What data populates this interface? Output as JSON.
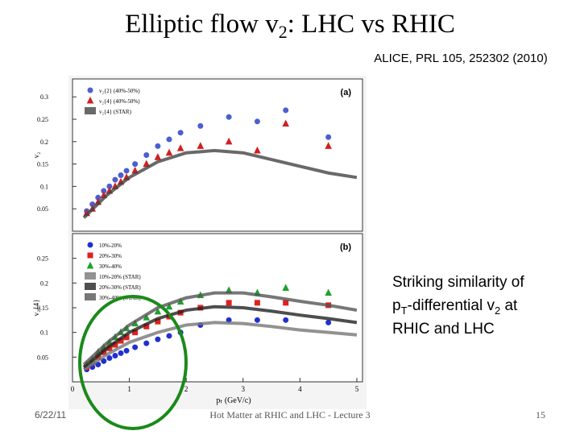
{
  "slide": {
    "title_parts": [
      "Elliptic flow v",
      "2",
      ": LHC vs RHIC"
    ],
    "citation": "ALICE, PRL 105, 252302 (2010)",
    "side_note": {
      "line1": "Striking similarity of",
      "line2_parts": [
        "p",
        "T",
        "-differential v",
        "2",
        " at"
      ],
      "line3": "RHIC and LHC"
    },
    "footer_date": "6/22/11",
    "footer_center": "Hot Matter at RHIC and LHC - Lecture 3",
    "page_number": "15"
  },
  "chart_data": [
    {
      "type": "scatter",
      "panel_tag": "(a)",
      "y_label": "v₂",
      "xlim": [
        0,
        5.1
      ],
      "ylim": [
        0,
        0.34
      ],
      "yticks": [
        0.05,
        0.1,
        0.15,
        0.2,
        0.25,
        0.3
      ],
      "series": [
        {
          "name": "v₂{2} (40%-50%)",
          "color": "#4a5fd0",
          "marker": "circle",
          "x": [
            0.25,
            0.35,
            0.45,
            0.55,
            0.65,
            0.75,
            0.85,
            0.95,
            1.1,
            1.3,
            1.5,
            1.7,
            1.9,
            2.25,
            2.75,
            3.25,
            3.75,
            4.5
          ],
          "values": [
            0.045,
            0.06,
            0.075,
            0.09,
            0.1,
            0.115,
            0.125,
            0.135,
            0.15,
            0.17,
            0.19,
            0.205,
            0.22,
            0.235,
            0.255,
            0.245,
            0.27,
            0.21
          ]
        },
        {
          "name": "v₂{4} (40%-50%)",
          "color": "#d02020",
          "marker": "triangle",
          "x": [
            0.25,
            0.35,
            0.45,
            0.55,
            0.65,
            0.75,
            0.85,
            0.95,
            1.1,
            1.3,
            1.5,
            1.7,
            1.9,
            2.25,
            2.75,
            3.25,
            3.75,
            4.5
          ],
          "values": [
            0.04,
            0.05,
            0.065,
            0.08,
            0.09,
            0.1,
            0.11,
            0.12,
            0.135,
            0.15,
            0.165,
            0.175,
            0.185,
            0.19,
            0.2,
            0.18,
            0.24,
            0.19
          ]
        },
        {
          "name": "v₂{4} (STAR)",
          "color": "#444444",
          "marker": "line",
          "x": [
            0.2,
            0.6,
            1,
            1.5,
            2,
            2.5,
            3,
            3.5,
            4,
            4.5,
            5
          ],
          "values": [
            0.03,
            0.08,
            0.12,
            0.155,
            0.175,
            0.18,
            0.175,
            0.16,
            0.145,
            0.13,
            0.12
          ]
        }
      ]
    },
    {
      "type": "scatter",
      "panel_tag": "(b)",
      "y_label": "v₂{4}",
      "x_label": "pₜ (GeV/c)",
      "xlim": [
        0,
        5.1
      ],
      "ylim": [
        0,
        0.3
      ],
      "yticks": [
        0.05,
        0.1,
        0.15,
        0.2,
        0.25
      ],
      "xticks": [
        0,
        1,
        2,
        3,
        4,
        5
      ],
      "series": [
        {
          "name": "10%-20%",
          "color": "#2030d0",
          "marker": "circle",
          "x": [
            0.25,
            0.35,
            0.45,
            0.55,
            0.65,
            0.75,
            0.85,
            0.95,
            1.1,
            1.3,
            1.5,
            1.7,
            1.9,
            2.25,
            2.75,
            3.25,
            3.75,
            4.5
          ],
          "values": [
            0.025,
            0.03,
            0.035,
            0.042,
            0.048,
            0.053,
            0.058,
            0.063,
            0.07,
            0.078,
            0.086,
            0.093,
            0.1,
            0.115,
            0.125,
            0.125,
            0.125,
            0.12
          ]
        },
        {
          "name": "20%-30%",
          "color": "#e02020",
          "marker": "square",
          "x": [
            0.25,
            0.35,
            0.45,
            0.55,
            0.65,
            0.75,
            0.85,
            0.95,
            1.1,
            1.3,
            1.5,
            1.7,
            1.9,
            2.25,
            2.75,
            3.25,
            3.75,
            4.5
          ],
          "values": [
            0.03,
            0.04,
            0.05,
            0.06,
            0.068,
            0.075,
            0.083,
            0.09,
            0.1,
            0.112,
            0.122,
            0.132,
            0.14,
            0.15,
            0.16,
            0.16,
            0.16,
            0.155
          ]
        },
        {
          "name": "30%-40%",
          "color": "#20a030",
          "marker": "triangle",
          "x": [
            0.25,
            0.35,
            0.45,
            0.55,
            0.65,
            0.75,
            0.85,
            0.95,
            1.1,
            1.3,
            1.5,
            1.7,
            1.9,
            2.25,
            2.75,
            3.25,
            3.75,
            4.5
          ],
          "values": [
            0.035,
            0.045,
            0.06,
            0.07,
            0.08,
            0.09,
            0.1,
            0.108,
            0.118,
            0.13,
            0.142,
            0.152,
            0.162,
            0.175,
            0.185,
            0.18,
            0.19,
            0.18
          ]
        },
        {
          "name": "10%-20% (STAR)",
          "color": "#777777",
          "marker": "line",
          "x": [
            0.2,
            0.6,
            1,
            1.5,
            2,
            2.5,
            3,
            3.5,
            4,
            4.5,
            5
          ],
          "values": [
            0.025,
            0.055,
            0.08,
            0.1,
            0.115,
            0.12,
            0.118,
            0.112,
            0.105,
            0.1,
            0.095
          ]
        },
        {
          "name": "20%-30% (STAR)",
          "color": "#222222",
          "marker": "line",
          "x": [
            0.2,
            0.6,
            1,
            1.5,
            2,
            2.5,
            3,
            3.5,
            4,
            4.5,
            5
          ],
          "values": [
            0.03,
            0.068,
            0.1,
            0.128,
            0.145,
            0.152,
            0.15,
            0.143,
            0.135,
            0.128,
            0.12
          ]
        },
        {
          "name": "30%-40% (STAR)",
          "color": "#555555",
          "marker": "line",
          "x": [
            0.2,
            0.6,
            1,
            1.5,
            2,
            2.5,
            3,
            3.5,
            4,
            4.5,
            5
          ],
          "values": [
            0.035,
            0.078,
            0.115,
            0.15,
            0.17,
            0.18,
            0.18,
            0.172,
            0.163,
            0.155,
            0.145
          ]
        }
      ]
    }
  ]
}
